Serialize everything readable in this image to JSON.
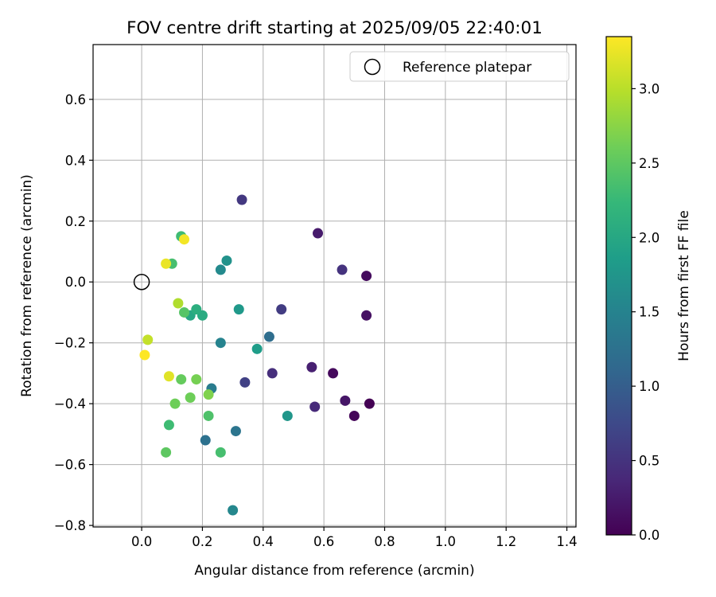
{
  "chart_data": {
    "type": "scatter",
    "title": "FOV centre drift starting at 2025/09/05 22:40:01",
    "xlabel": "Angular distance from reference (arcmin)",
    "ylabel": "Rotation from reference (arcmin)",
    "xlim": [
      -0.16,
      1.43
    ],
    "ylim": [
      -0.805,
      0.78
    ],
    "xticks": [
      "0.0",
      "0.2",
      "0.4",
      "0.6",
      "0.8",
      "1.0",
      "1.2",
      "1.4"
    ],
    "xtick_values": [
      0.0,
      0.2,
      0.4,
      0.6,
      0.8,
      1.0,
      1.2,
      1.4
    ],
    "yticks": [
      "−0.8",
      "−0.6",
      "−0.4",
      "−0.2",
      "0.0",
      "0.2",
      "0.4",
      "0.6"
    ],
    "ytick_values": [
      -0.8,
      -0.6,
      -0.4,
      -0.2,
      0.0,
      0.2,
      0.4,
      0.6
    ],
    "grid": true,
    "legend": {
      "position": "top-right",
      "entries": [
        {
          "label": "Reference platepar",
          "marker": "open-circle"
        }
      ]
    },
    "reference_point": {
      "x": 0.0,
      "y": 0.0
    },
    "colorbar": {
      "label": "Hours from first FF file",
      "colormap": "viridis",
      "range": [
        0.0,
        3.35
      ],
      "ticks": [
        "0.0",
        "0.5",
        "1.0",
        "1.5",
        "2.0",
        "2.5",
        "3.0"
      ],
      "tick_values": [
        0.0,
        0.5,
        1.0,
        1.5,
        2.0,
        2.5,
        3.0
      ]
    },
    "points": [
      {
        "x": 0.75,
        "y": -0.4,
        "c": 0.0
      },
      {
        "x": 0.7,
        "y": -0.44,
        "c": 0.05
      },
      {
        "x": 0.63,
        "y": -0.3,
        "c": 0.08
      },
      {
        "x": 0.74,
        "y": 0.02,
        "c": 0.1
      },
      {
        "x": 0.74,
        "y": -0.11,
        "c": 0.15
      },
      {
        "x": 0.67,
        "y": -0.39,
        "c": 0.2
      },
      {
        "x": 0.58,
        "y": 0.16,
        "c": 0.25
      },
      {
        "x": 0.56,
        "y": -0.28,
        "c": 0.3
      },
      {
        "x": 0.57,
        "y": -0.41,
        "c": 0.4
      },
      {
        "x": 0.43,
        "y": -0.3,
        "c": 0.45
      },
      {
        "x": 0.66,
        "y": 0.04,
        "c": 0.5
      },
      {
        "x": 0.33,
        "y": 0.27,
        "c": 0.55
      },
      {
        "x": 0.46,
        "y": -0.09,
        "c": 0.6
      },
      {
        "x": 0.34,
        "y": -0.33,
        "c": 0.65
      },
      {
        "x": 0.42,
        "y": -0.18,
        "c": 1.2
      },
      {
        "x": 0.21,
        "y": -0.52,
        "c": 1.25
      },
      {
        "x": 0.31,
        "y": -0.49,
        "c": 1.3
      },
      {
        "x": 0.23,
        "y": -0.35,
        "c": 1.4
      },
      {
        "x": 0.26,
        "y": -0.2,
        "c": 1.5
      },
      {
        "x": 0.3,
        "y": -0.75,
        "c": 1.55
      },
      {
        "x": 0.26,
        "y": 0.04,
        "c": 1.6
      },
      {
        "x": 0.28,
        "y": 0.07,
        "c": 1.7
      },
      {
        "x": 0.48,
        "y": -0.44,
        "c": 1.75
      },
      {
        "x": 0.32,
        "y": -0.09,
        "c": 1.8
      },
      {
        "x": 0.38,
        "y": -0.22,
        "c": 1.85
      },
      {
        "x": 0.16,
        "y": -0.11,
        "c": 2.0
      },
      {
        "x": 0.2,
        "y": -0.11,
        "c": 2.05
      },
      {
        "x": 0.18,
        "y": -0.09,
        "c": 2.1
      },
      {
        "x": 0.13,
        "y": 0.15,
        "c": 2.3
      },
      {
        "x": 0.09,
        "y": -0.47,
        "c": 2.3
      },
      {
        "x": 0.1,
        "y": 0.06,
        "c": 2.35
      },
      {
        "x": 0.26,
        "y": -0.56,
        "c": 2.35
      },
      {
        "x": 0.22,
        "y": -0.44,
        "c": 2.4
      },
      {
        "x": 0.14,
        "y": -0.1,
        "c": 2.45
      },
      {
        "x": 0.08,
        "y": -0.56,
        "c": 2.5
      },
      {
        "x": 0.13,
        "y": -0.32,
        "c": 2.55
      },
      {
        "x": 0.11,
        "y": -0.4,
        "c": 2.6
      },
      {
        "x": 0.16,
        "y": -0.38,
        "c": 2.6
      },
      {
        "x": 0.18,
        "y": -0.32,
        "c": 2.65
      },
      {
        "x": 0.22,
        "y": -0.37,
        "c": 2.7
      },
      {
        "x": 0.12,
        "y": -0.07,
        "c": 2.95
      },
      {
        "x": 0.02,
        "y": -0.19,
        "c": 3.05
      },
      {
        "x": 0.09,
        "y": -0.31,
        "c": 3.2
      },
      {
        "x": 0.08,
        "y": 0.06,
        "c": 3.25
      },
      {
        "x": 0.14,
        "y": 0.14,
        "c": 3.3
      },
      {
        "x": 0.01,
        "y": -0.24,
        "c": 3.35
      }
    ]
  },
  "colors": {
    "axis": "#000000",
    "grid": "#b0b0b0",
    "legend_border": "#cccccc",
    "viridis_stops": [
      "#440154",
      "#482878",
      "#3e4989",
      "#31688e",
      "#26828e",
      "#1f9e89",
      "#35b779",
      "#6ece58",
      "#b5de2b",
      "#fde725"
    ]
  }
}
